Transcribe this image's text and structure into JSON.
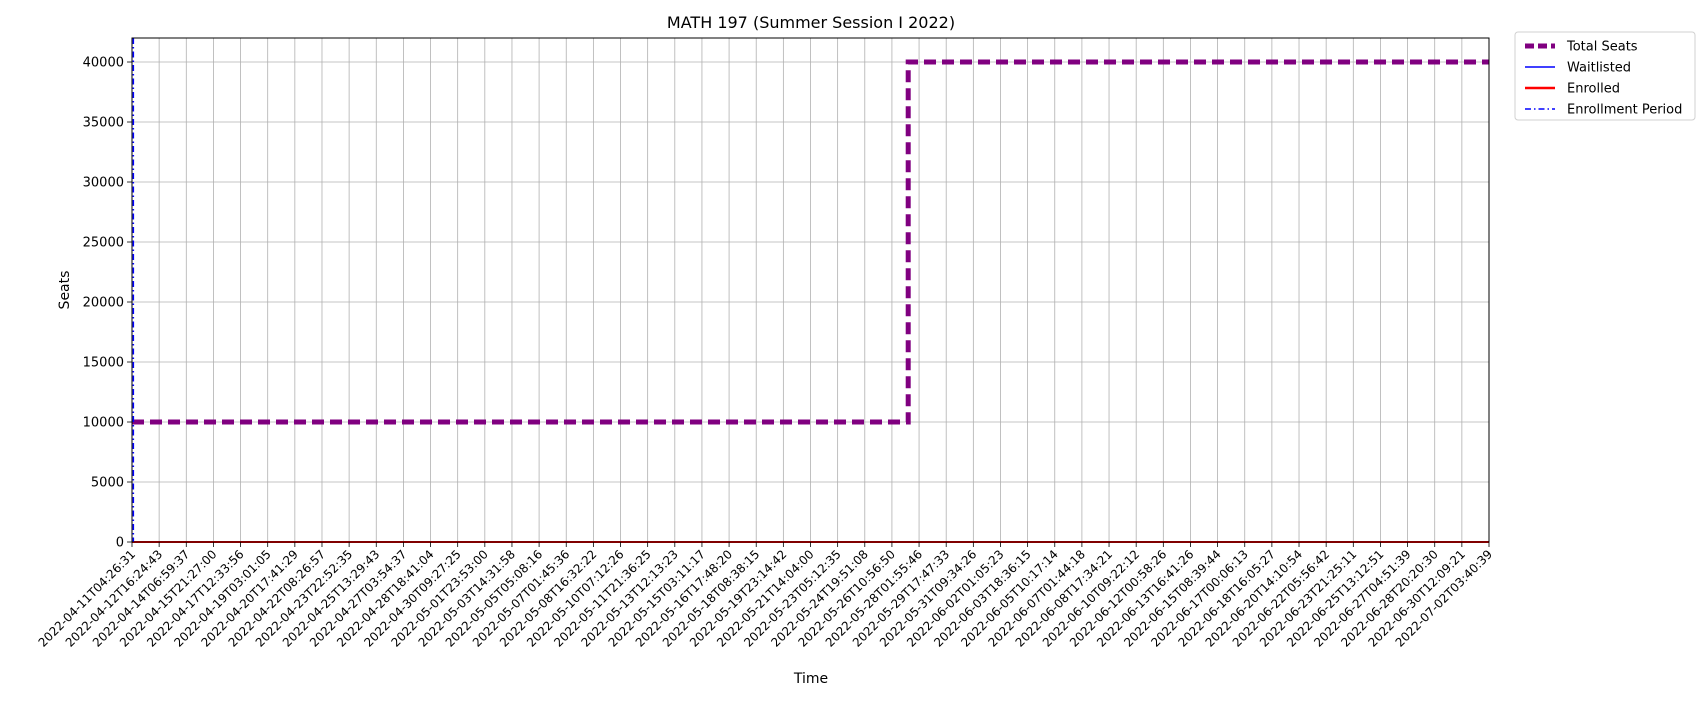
{
  "chart_data": {
    "type": "line",
    "title": "MATH 197 (Summer Session I 2022)",
    "xlabel": "Time",
    "ylabel": "Seats",
    "ylim": [
      0,
      42000
    ],
    "yticks": [
      0,
      5000,
      10000,
      15000,
      20000,
      25000,
      30000,
      35000,
      40000
    ],
    "grid": true,
    "legend_position": "outside-top-right",
    "categories": [
      "2022-04-11T04:26:31",
      "2022-04-12T16:24:43",
      "2022-04-14T06:59:37",
      "2022-04-15T21:27:00",
      "2022-04-17T12:33:56",
      "2022-04-19T03:01:05",
      "2022-04-20T17:41:29",
      "2022-04-22T08:26:57",
      "2022-04-23T22:52:35",
      "2022-04-25T13:29:43",
      "2022-04-27T03:54:37",
      "2022-04-28T18:41:04",
      "2022-04-30T09:27:25",
      "2022-05-01T23:53:00",
      "2022-05-03T14:31:58",
      "2022-05-05T05:08:16",
      "2022-05-07T01:45:36",
      "2022-05-08T16:32:22",
      "2022-05-10T07:12:26",
      "2022-05-11T21:36:25",
      "2022-05-13T12:13:23",
      "2022-05-15T03:11:17",
      "2022-05-16T17:48:20",
      "2022-05-18T08:38:15",
      "2022-05-19T23:14:42",
      "2022-05-21T14:04:00",
      "2022-05-23T05:12:35",
      "2022-05-24T19:51:08",
      "2022-05-26T10:56:50",
      "2022-05-28T01:55:46",
      "2022-05-29T17:47:33",
      "2022-05-31T09:34:26",
      "2022-06-02T01:05:23",
      "2022-06-03T18:36:15",
      "2022-06-05T10:17:14",
      "2022-06-07T01:44:18",
      "2022-06-08T17:34:21",
      "2022-06-10T09:22:12",
      "2022-06-12T00:58:26",
      "2022-06-13T16:41:26",
      "2022-06-15T08:39:44",
      "2022-06-17T00:06:13",
      "2022-06-18T16:05:27",
      "2022-06-20T14:10:54",
      "2022-06-22T05:56:42",
      "2022-06-23T21:25:11",
      "2022-06-25T13:12:51",
      "2022-06-27T04:51:39",
      "2022-06-28T20:20:30",
      "2022-06-30T12:09:21",
      "2022-07-02T03:40:39"
    ],
    "series": [
      {
        "name": "Total Seats",
        "color": "#800080",
        "style": "dashed",
        "steps": [
          [
            0,
            10000
          ],
          [
            28.6,
            10000
          ],
          [
            28.6,
            40000
          ],
          [
            50,
            40000
          ]
        ]
      },
      {
        "name": "Waitlisted",
        "color": "#0000ff",
        "style": "solid",
        "steps": [
          [
            0,
            0
          ],
          [
            50,
            0
          ]
        ]
      },
      {
        "name": "Enrolled",
        "color": "#ff0000",
        "style": "solid",
        "steps": [
          [
            0,
            0
          ],
          [
            50,
            0
          ]
        ]
      },
      {
        "name": "Enrollment Period",
        "color": "#0000ff",
        "style": "dashdot",
        "vertical_at_index": 0.05
      }
    ]
  }
}
